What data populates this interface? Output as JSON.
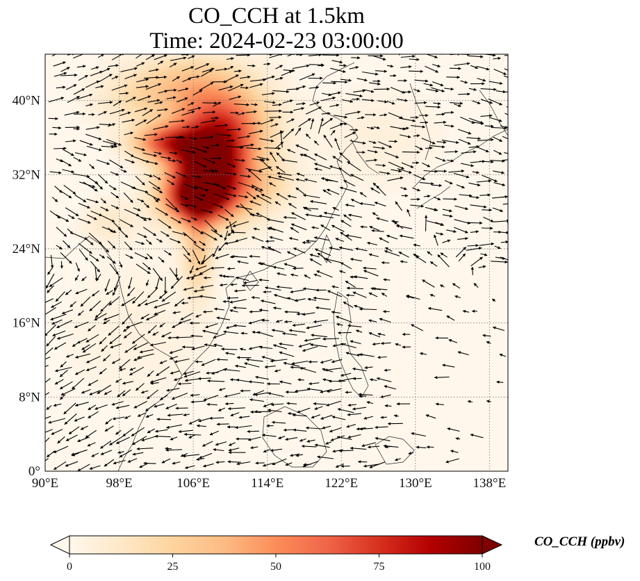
{
  "title": {
    "line1": "CO_CCH at 1.5km",
    "line2": "Time: 2024-02-23 03:00:00"
  },
  "map": {
    "projection": "PlateCarree",
    "lon_range": [
      90,
      140
    ],
    "lat_range": [
      0,
      45
    ],
    "gridlines": "dotted",
    "lon_ticks": [
      {
        "value": 90,
        "label": "90°E"
      },
      {
        "value": 98,
        "label": "98°E"
      },
      {
        "value": 106,
        "label": "106°E"
      },
      {
        "value": 114,
        "label": "114°E"
      },
      {
        "value": 122,
        "label": "122°E"
      },
      {
        "value": 130,
        "label": "130°E"
      },
      {
        "value": 138,
        "label": "138°E"
      }
    ],
    "lat_ticks": [
      {
        "value": 0,
        "label": "0°"
      },
      {
        "value": 8,
        "label": "8°N"
      },
      {
        "value": 16,
        "label": "16°N"
      },
      {
        "value": 24,
        "label": "24°N"
      },
      {
        "value": 32,
        "label": "32°N"
      },
      {
        "value": 40,
        "label": "40°N"
      }
    ],
    "field_colormap": "OrRd",
    "vector_color": "#000000",
    "concentration_hotspots": [
      {
        "lon": 106.5,
        "lat": 29.5,
        "value": 100,
        "sx": 2.6,
        "sy": 1.9
      },
      {
        "lon": 107.5,
        "lat": 33.5,
        "value": 80,
        "sx": 2.8,
        "sy": 2.2
      },
      {
        "lon": 109,
        "lat": 37.5,
        "value": 65,
        "sx": 3.5,
        "sy": 2.5
      },
      {
        "lon": 103,
        "lat": 35.5,
        "value": 55,
        "sx": 2.6,
        "sy": 1.3
      },
      {
        "lon": 106,
        "lat": 42,
        "value": 30,
        "sx": 4.5,
        "sy": 2.2
      },
      {
        "lon": 106.5,
        "lat": 24,
        "value": 30,
        "sx": 1.1,
        "sy": 3.5
      },
      {
        "lon": 110,
        "lat": 31,
        "value": 32,
        "sx": 3.5,
        "sy": 3.0
      },
      {
        "lon": 97,
        "lat": 27,
        "value": 12,
        "sx": 2.0,
        "sy": 1.6
      },
      {
        "lon": 100,
        "lat": 40,
        "value": 14,
        "sx": 3.5,
        "sy": 2.0
      },
      {
        "lon": 114,
        "lat": 31,
        "value": 10,
        "sx": 2.5,
        "sy": 1.5
      },
      {
        "lon": 126,
        "lat": 36,
        "value": 6,
        "sx": 5.0,
        "sy": 4.0
      },
      {
        "lon": 100,
        "lat": 15,
        "value": 5,
        "sx": 6.0,
        "sy": 6.0
      }
    ],
    "wind_flow_regimes": [
      {
        "region": "tibet-to-central-china",
        "lon": 99,
        "lat": 31,
        "direction_deg": 30
      },
      {
        "region": "north-china-northwest",
        "lon": 100,
        "lat": 40,
        "direction_deg": 340
      },
      {
        "region": "east-china-sea-easterlies",
        "lon": 124,
        "lat": 24,
        "direction_deg": 200
      },
      {
        "region": "japan-westerlies",
        "lon": 133,
        "lat": 33,
        "direction_deg": 10
      },
      {
        "region": "south-china-sea-easterlies",
        "lon": 116,
        "lat": 14,
        "direction_deg": 180
      },
      {
        "region": "bay-of-bengal-anticyclone",
        "lon": 95,
        "lat": 12,
        "direction_deg": 150
      },
      {
        "region": "equatorial",
        "lon": 110,
        "lat": 4,
        "direction_deg": 170
      }
    ]
  },
  "colorbar": {
    "label": "CO_CCH (ppbv)",
    "min": 0,
    "max": 100,
    "extend": "both",
    "ticks": [
      {
        "value": 0,
        "label": "0"
      },
      {
        "value": 25,
        "label": "25"
      },
      {
        "value": 50,
        "label": "50"
      },
      {
        "value": 75,
        "label": "75"
      },
      {
        "value": 100,
        "label": "100"
      }
    ],
    "colors": [
      "#fff7ec",
      "#fee8c8",
      "#fdd49e",
      "#fdbb84",
      "#fc8d59",
      "#ef6548",
      "#d7301f",
      "#b30000",
      "#7f0000"
    ]
  }
}
